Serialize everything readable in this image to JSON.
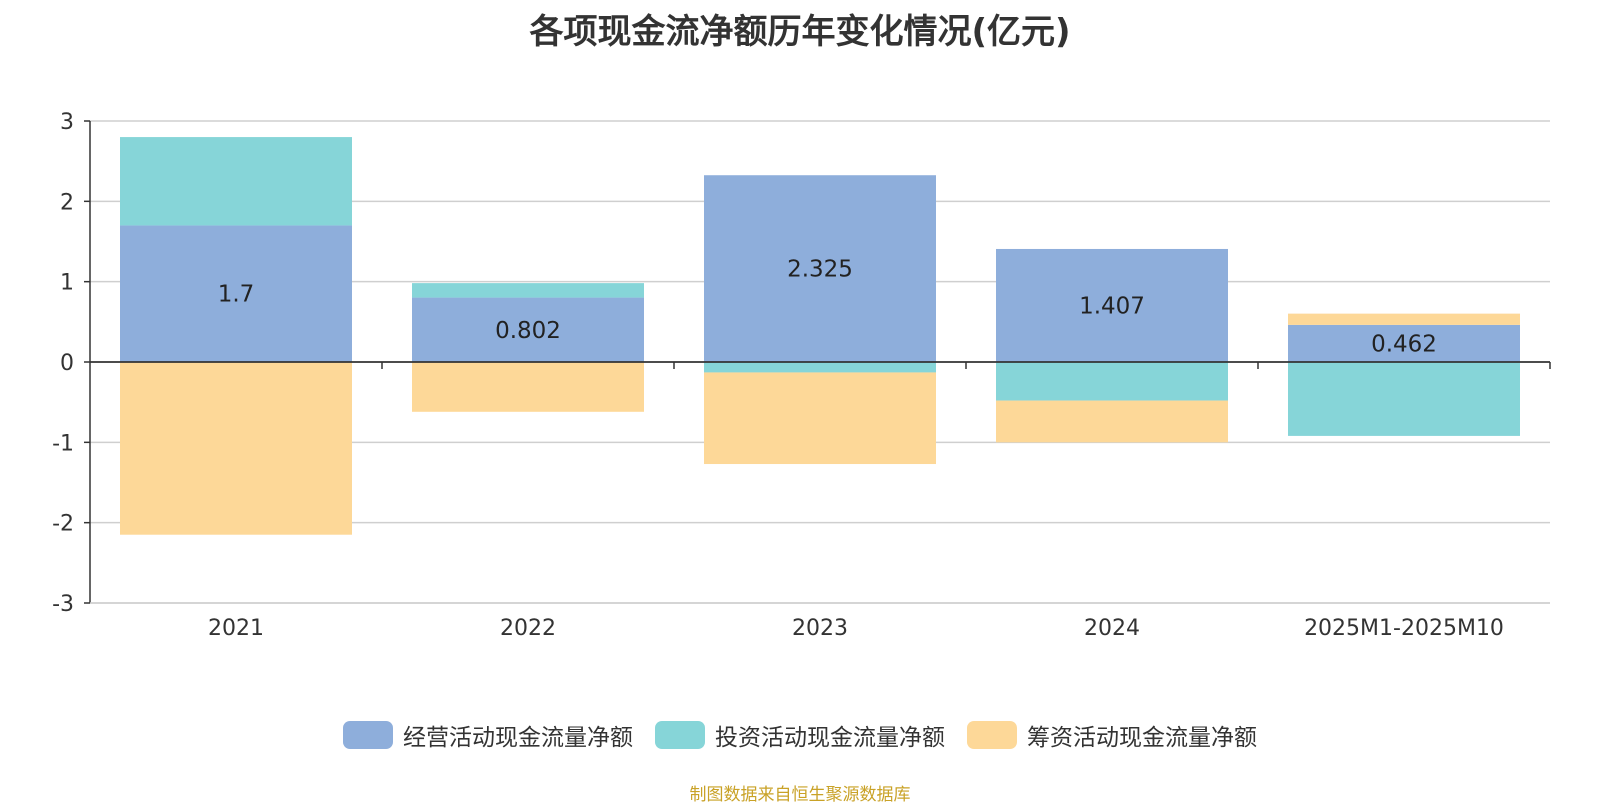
{
  "chart_data": {
    "type": "bar",
    "stacked": true,
    "title": "各项现金流净额历年变化情况(亿元)",
    "categories": [
      "2021",
      "2022",
      "2023",
      "2024",
      "2025M1-2025M10"
    ],
    "series": [
      {
        "name": "经营活动现金流量净额",
        "color": "#8eaedb",
        "values": [
          1.7,
          0.802,
          2.325,
          1.407,
          0.462
        ],
        "labels": [
          "1.7",
          "0.802",
          "2.325",
          "1.407",
          "0.462"
        ]
      },
      {
        "name": "投资活动现金流量净额",
        "color": "#86d5d8",
        "values": [
          1.1,
          0.18,
          -0.13,
          -0.48,
          -0.92
        ]
      },
      {
        "name": "筹资活动现金流量净额",
        "color": "#fdd898",
        "values": [
          -2.15,
          -0.62,
          -1.14,
          -0.52,
          0.14
        ]
      }
    ],
    "ylim": [
      -3,
      3
    ],
    "yticks": [
      "3",
      "2",
      "1",
      "0",
      "-1",
      "-2",
      "-3"
    ],
    "grid": true,
    "legend_position": "bottom"
  },
  "source": "制图数据来自恒生聚源数据库"
}
